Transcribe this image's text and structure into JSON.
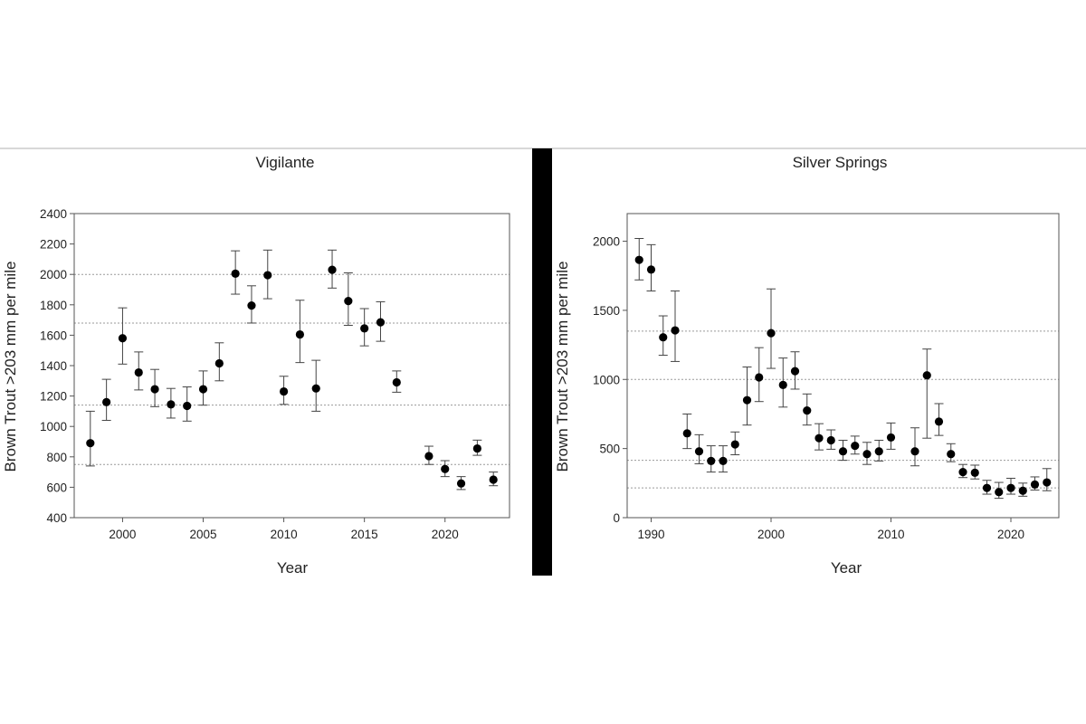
{
  "chart_data": [
    {
      "type": "scatter",
      "title": "Vigilante",
      "xlabel": "Year",
      "ylabel": "Brown Trout >203 mm per mile",
      "xlim": [
        1997,
        2024
      ],
      "ylim": [
        400,
        2400
      ],
      "xticks": [
        "2000",
        "2005",
        "2010",
        "2015",
        "2020"
      ],
      "yticks": [
        "400",
        "600",
        "800",
        "1000",
        "1200",
        "1400",
        "1600",
        "1800",
        "2000",
        "2200",
        "2400"
      ],
      "reference_lines": [
        750,
        1140,
        1680,
        2000
      ],
      "series": [
        {
          "points": [
            {
              "x": 1998,
              "y": 890,
              "lo": 740,
              "hi": 1100
            },
            {
              "x": 1999,
              "y": 1160,
              "lo": 1040,
              "hi": 1310
            },
            {
              "x": 2000,
              "y": 1580,
              "lo": 1410,
              "hi": 1780
            },
            {
              "x": 2001,
              "y": 1355,
              "lo": 1240,
              "hi": 1490
            },
            {
              "x": 2002,
              "y": 1245,
              "lo": 1130,
              "hi": 1375
            },
            {
              "x": 2003,
              "y": 1145,
              "lo": 1055,
              "hi": 1250
            },
            {
              "x": 2004,
              "y": 1135,
              "lo": 1035,
              "hi": 1260
            },
            {
              "x": 2005,
              "y": 1245,
              "lo": 1140,
              "hi": 1365
            },
            {
              "x": 2006,
              "y": 1415,
              "lo": 1300,
              "hi": 1550
            },
            {
              "x": 2007,
              "y": 2005,
              "lo": 1870,
              "hi": 2155
            },
            {
              "x": 2008,
              "y": 1795,
              "lo": 1680,
              "hi": 1925
            },
            {
              "x": 2009,
              "y": 1995,
              "lo": 1840,
              "hi": 2160
            },
            {
              "x": 2010,
              "y": 1230,
              "lo": 1145,
              "hi": 1330
            },
            {
              "x": 2011,
              "y": 1605,
              "lo": 1420,
              "hi": 1830
            },
            {
              "x": 2012,
              "y": 1250,
              "lo": 1100,
              "hi": 1435
            },
            {
              "x": 2013,
              "y": 2030,
              "lo": 1910,
              "hi": 2160
            },
            {
              "x": 2014,
              "y": 1825,
              "lo": 1665,
              "hi": 2010
            },
            {
              "x": 2015,
              "y": 1645,
              "lo": 1530,
              "hi": 1775
            },
            {
              "x": 2016,
              "y": 1685,
              "lo": 1560,
              "hi": 1820
            },
            {
              "x": 2017,
              "y": 1290,
              "lo": 1225,
              "hi": 1365
            },
            {
              "x": 2019,
              "y": 805,
              "lo": 750,
              "hi": 870
            },
            {
              "x": 2020,
              "y": 720,
              "lo": 670,
              "hi": 775
            },
            {
              "x": 2021,
              "y": 625,
              "lo": 585,
              "hi": 670
            },
            {
              "x": 2022,
              "y": 855,
              "lo": 810,
              "hi": 910
            },
            {
              "x": 2023,
              "y": 650,
              "lo": 610,
              "hi": 700
            }
          ]
        }
      ]
    },
    {
      "type": "scatter",
      "title": "Silver Springs",
      "xlabel": "Year",
      "ylabel": "Brown Trout >203 mm per mile",
      "xlim": [
        1988,
        2024
      ],
      "ylim": [
        0,
        2200
      ],
      "xticks": [
        "1990",
        "2000",
        "2010",
        "2020"
      ],
      "yticks": [
        "0",
        "500",
        "1000",
        "1500",
        "2000"
      ],
      "reference_lines": [
        215,
        415,
        1000,
        1350
      ],
      "series": [
        {
          "points": [
            {
              "x": 1989,
              "y": 1865,
              "lo": 1720,
              "hi": 2020
            },
            {
              "x": 1990,
              "y": 1795,
              "lo": 1640,
              "hi": 1975
            },
            {
              "x": 1991,
              "y": 1305,
              "lo": 1175,
              "hi": 1460
            },
            {
              "x": 1992,
              "y": 1355,
              "lo": 1130,
              "hi": 1640
            },
            {
              "x": 1993,
              "y": 610,
              "lo": 500,
              "hi": 750
            },
            {
              "x": 1994,
              "y": 480,
              "lo": 390,
              "hi": 600
            },
            {
              "x": 1995,
              "y": 410,
              "lo": 330,
              "hi": 520
            },
            {
              "x": 1996,
              "y": 410,
              "lo": 330,
              "hi": 520
            },
            {
              "x": 1997,
              "y": 530,
              "lo": 455,
              "hi": 620
            },
            {
              "x": 1998,
              "y": 850,
              "lo": 670,
              "hi": 1090
            },
            {
              "x": 1999,
              "y": 1015,
              "lo": 840,
              "hi": 1230
            },
            {
              "x": 2000,
              "y": 1335,
              "lo": 1080,
              "hi": 1655
            },
            {
              "x": 2001,
              "y": 960,
              "lo": 800,
              "hi": 1155
            },
            {
              "x": 2002,
              "y": 1060,
              "lo": 930,
              "hi": 1200
            },
            {
              "x": 2003,
              "y": 775,
              "lo": 670,
              "hi": 895
            },
            {
              "x": 2004,
              "y": 575,
              "lo": 490,
              "hi": 680
            },
            {
              "x": 2005,
              "y": 560,
              "lo": 495,
              "hi": 635
            },
            {
              "x": 2006,
              "y": 480,
              "lo": 415,
              "hi": 560
            },
            {
              "x": 2007,
              "y": 520,
              "lo": 460,
              "hi": 590
            },
            {
              "x": 2008,
              "y": 460,
              "lo": 385,
              "hi": 545
            },
            {
              "x": 2009,
              "y": 480,
              "lo": 410,
              "hi": 560
            },
            {
              "x": 2010,
              "y": 580,
              "lo": 495,
              "hi": 685
            },
            {
              "x": 2012,
              "y": 480,
              "lo": 375,
              "hi": 650
            },
            {
              "x": 2013,
              "y": 1030,
              "lo": 575,
              "hi": 1220
            },
            {
              "x": 2014,
              "y": 695,
              "lo": 595,
              "hi": 825
            },
            {
              "x": 2015,
              "y": 460,
              "lo": 405,
              "hi": 535
            },
            {
              "x": 2016,
              "y": 330,
              "lo": 290,
              "hi": 385
            },
            {
              "x": 2017,
              "y": 325,
              "lo": 280,
              "hi": 380
            },
            {
              "x": 2018,
              "y": 215,
              "lo": 170,
              "hi": 270
            },
            {
              "x": 2019,
              "y": 185,
              "lo": 140,
              "hi": 255
            },
            {
              "x": 2020,
              "y": 215,
              "lo": 170,
              "hi": 285
            },
            {
              "x": 2021,
              "y": 195,
              "lo": 155,
              "hi": 250
            },
            {
              "x": 2022,
              "y": 240,
              "lo": 200,
              "hi": 295
            },
            {
              "x": 2023,
              "y": 255,
              "lo": 195,
              "hi": 355
            }
          ]
        }
      ]
    }
  ]
}
